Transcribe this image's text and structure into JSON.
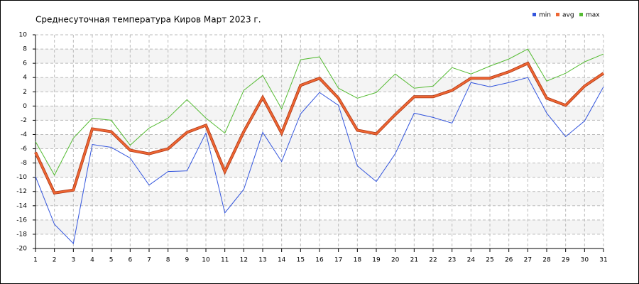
{
  "chart_data": {
    "type": "line",
    "title": "Среднесуточная температура Киров  Март 2023 г.",
    "x": [
      1,
      2,
      3,
      4,
      5,
      6,
      7,
      8,
      9,
      10,
      11,
      12,
      13,
      14,
      15,
      16,
      17,
      18,
      19,
      20,
      21,
      22,
      23,
      24,
      25,
      26,
      27,
      28,
      29,
      30,
      31
    ],
    "xlim": [
      1,
      31
    ],
    "xticks": [
      1,
      2,
      3,
      4,
      5,
      6,
      7,
      8,
      9,
      10,
      11,
      12,
      13,
      14,
      15,
      16,
      17,
      18,
      19,
      20,
      21,
      22,
      23,
      24,
      25,
      26,
      27,
      28,
      29,
      30,
      31
    ],
    "ylim": [
      -20,
      10
    ],
    "yticks": [
      -20,
      -18,
      -16,
      -14,
      -12,
      -10,
      -8,
      -6,
      -4,
      -2,
      0,
      2,
      4,
      6,
      8,
      10
    ],
    "grid": true,
    "legend": "top-right",
    "series": [
      {
        "name": "min",
        "color": "#3355dd",
        "values": [
          -9.9,
          -16.6,
          -19.3,
          -5.4,
          -5.8,
          -7.3,
          -11.1,
          -9.2,
          -9.1,
          -3.8,
          -15.0,
          -11.7,
          -3.7,
          -7.8,
          -1.1,
          1.9,
          0.1,
          -8.4,
          -10.6,
          -6.7,
          -1.0,
          -1.6,
          -2.4,
          3.3,
          2.7,
          3.3,
          4.0,
          -1.0,
          -4.3,
          -2.1,
          2.7
        ]
      },
      {
        "name": "avg",
        "color": "#ee6633",
        "values": [
          -6.5,
          -12.2,
          -11.8,
          -3.2,
          -3.6,
          -6.2,
          -6.7,
          -6.0,
          -3.7,
          -2.7,
          -9.2,
          -3.6,
          1.2,
          -3.8,
          2.9,
          3.9,
          1.1,
          -3.4,
          -3.9,
          -1.2,
          1.3,
          1.3,
          2.2,
          3.9,
          3.9,
          4.8,
          6.0,
          1.1,
          0.1,
          2.8,
          4.6
        ]
      },
      {
        "name": "max",
        "color": "#55bb33",
        "values": [
          -5.0,
          -9.7,
          -4.5,
          -1.7,
          -2.0,
          -5.5,
          -3.1,
          -1.7,
          0.9,
          -1.7,
          -3.8,
          2.2,
          4.3,
          -0.4,
          6.5,
          6.9,
          2.5,
          1.1,
          1.9,
          4.5,
          2.5,
          2.8,
          5.4,
          4.5,
          5.6,
          6.6,
          8.0,
          3.5,
          4.6,
          6.2,
          7.3
        ]
      }
    ]
  }
}
